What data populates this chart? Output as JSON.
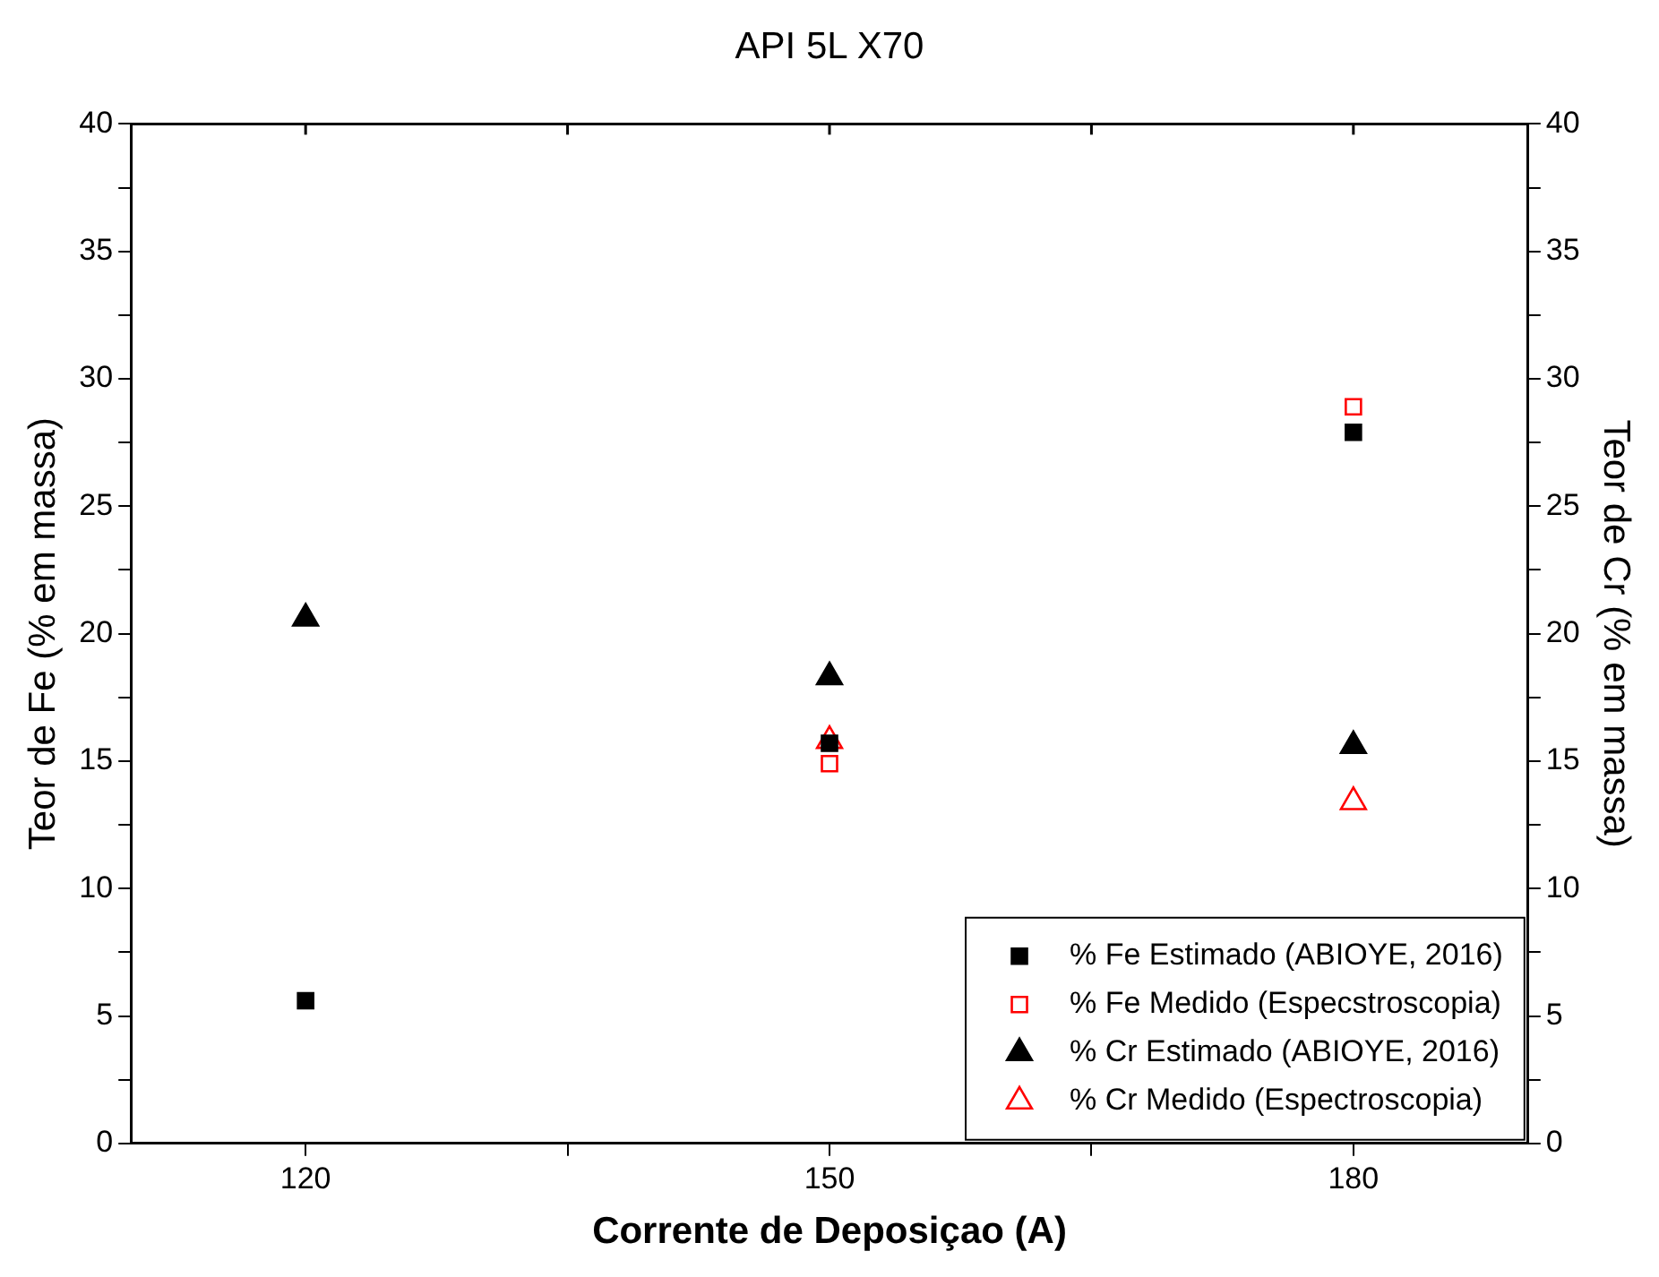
{
  "chart_data": {
    "type": "scatter",
    "title": "API 5L X70",
    "xlabel": "Corrente de Deposiçao (A)",
    "ylabel": "Teor de Fe (% em massa)",
    "y2label": "Teor de Cr (% em massa)",
    "x": [
      120,
      150,
      180
    ],
    "series": [
      {
        "name": "% Fe Estimado (ABIOYE, 2016)",
        "color": "#000000",
        "marker": "square",
        "values": [
          5.6,
          15.7,
          27.9
        ]
      },
      {
        "name": "% Fe Medido (Especstroscopia)",
        "color": "#ff0000",
        "marker": "square",
        "values": [
          null,
          14.9,
          28.9
        ]
      },
      {
        "name": "% Cr Estimado (ABIOYE, 2016)",
        "color": "#000000",
        "marker": "triangle",
        "axis": "y2",
        "values": [
          20.6,
          18.3,
          15.6
        ]
      },
      {
        "name": "% Cr Medido (Espectroscopia)",
        "color": "#ff0000",
        "marker": "triangle",
        "axis": "y2",
        "values": [
          null,
          15.8,
          13.4
        ]
      }
    ],
    "xlim": [
      110,
      190
    ],
    "xticks": [
      120,
      {
        "value": 135,
        "label": null
      },
      150,
      {
        "value": 165,
        "label": null
      },
      180
    ],
    "ylim": [
      0,
      40
    ],
    "yticks": [
      0,
      {
        "value": 2.5,
        "label": null
      },
      5,
      {
        "value": 7.5,
        "label": null
      },
      10,
      {
        "value": 12.5,
        "label": null
      },
      15,
      {
        "value": 17.5,
        "label": null
      },
      20,
      {
        "value": 22.5,
        "label": null
      },
      25,
      {
        "value": 27.5,
        "label": null
      },
      30,
      {
        "value": 32.5,
        "label": null
      },
      35,
      {
        "value": 37.5,
        "label": null
      },
      40
    ],
    "y2lim": [
      0,
      40
    ],
    "y2ticks": [
      0,
      {
        "value": 2.5,
        "label": null
      },
      5,
      {
        "value": 7.5,
        "label": null
      },
      10,
      {
        "value": 12.5,
        "label": null
      },
      15,
      {
        "value": 17.5,
        "label": null
      },
      20,
      {
        "value": 22.5,
        "label": null
      },
      25,
      {
        "value": 27.5,
        "label": null
      },
      30,
      {
        "value": 32.5,
        "label": null
      },
      35,
      {
        "value": 37.5,
        "label": null
      },
      40
    ],
    "grid": false,
    "legend": "bottom right"
  }
}
